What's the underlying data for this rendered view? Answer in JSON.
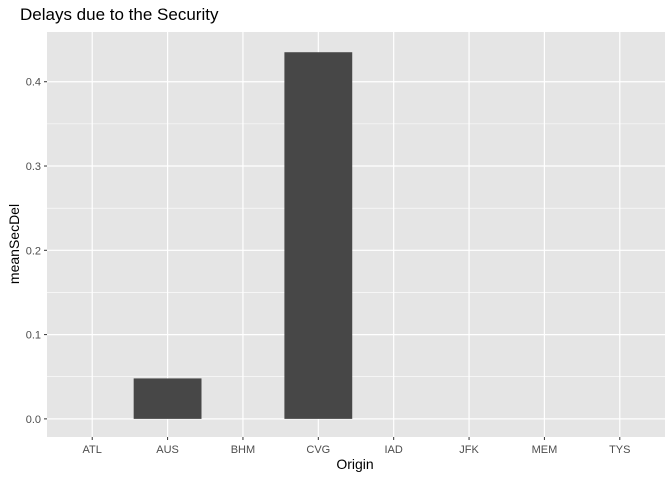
{
  "chart_data": {
    "type": "bar",
    "title": "Delays due to the Security",
    "xlabel": "Origin",
    "ylabel": "meanSecDel",
    "categories": [
      "ATL",
      "AUS",
      "BHM",
      "CVG",
      "IAD",
      "JFK",
      "MEM",
      "TYS"
    ],
    "values": [
      0,
      0.048,
      0,
      0.435,
      0,
      0,
      0,
      0
    ],
    "ylim": [
      -0.0215,
      0.459
    ],
    "yticks": [
      0.0,
      0.1,
      0.2,
      0.3,
      0.4
    ],
    "ytick_labels": [
      "0.0",
      "0.1",
      "0.2",
      "0.3",
      "0.4"
    ],
    "grid": true,
    "colors": {
      "panel": "#e5e5e5",
      "grid_major": "#ffffff",
      "bar": "#474747",
      "tick_text": "#4d4d4d",
      "tick_mark": "#333333"
    }
  }
}
